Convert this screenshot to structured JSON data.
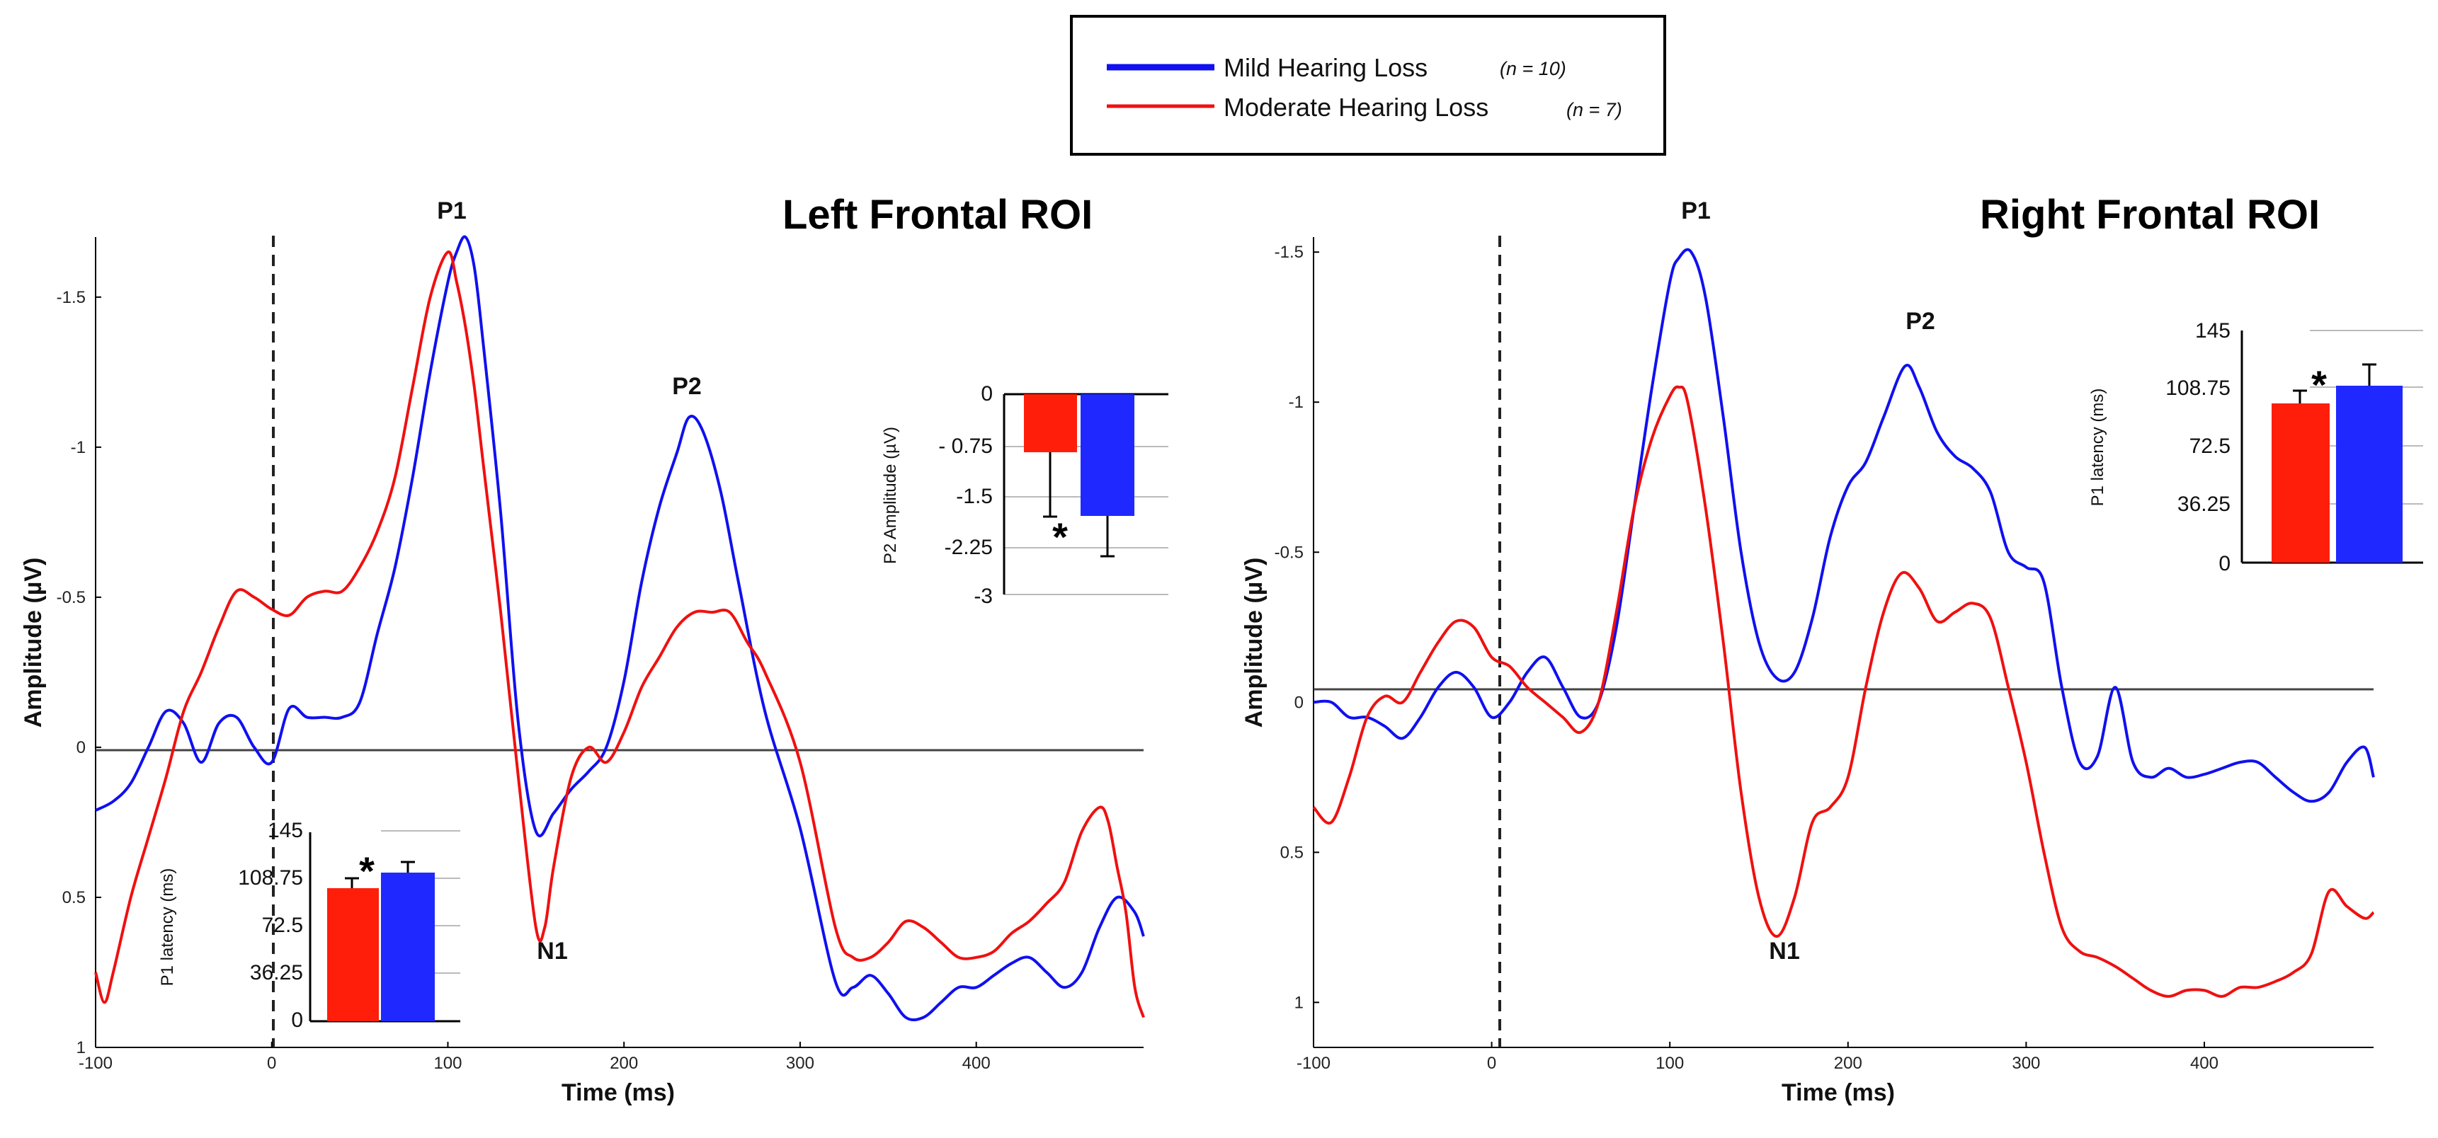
{
  "legend": {
    "entries": [
      {
        "label": "Mild Hearing Loss",
        "n": "(n = 10)",
        "color": "#1010f0"
      },
      {
        "label": "Moderate Hearing Loss",
        "n": "(n = 7)",
        "color": "#f01010"
      }
    ]
  },
  "chart_data": [
    {
      "type": "line",
      "title": "Left Frontal ROI",
      "xlabel": "Time (ms)",
      "ylabel": "Amplitude (µV)",
      "xlim": [
        -100,
        495
      ],
      "ylim": [
        1.0,
        -1.7
      ],
      "y_inverted": true,
      "xticks": [
        -100,
        0,
        100,
        200,
        300,
        400
      ],
      "yticks": [
        -1.5,
        -1,
        -0.5,
        0,
        0.5,
        1
      ],
      "ytick_labels": [
        "-1.5",
        "-1",
        "-0.5",
        "0",
        "0.5",
        "1"
      ],
      "stimulus_onset_ms": 0,
      "annotations": [
        {
          "text": "P1",
          "x": 100,
          "y": -1.78
        },
        {
          "text": "P2",
          "x": 233,
          "y": -1.2
        },
        {
          "text": "N1",
          "x": 158,
          "y": 0.68
        }
      ],
      "series": [
        {
          "name": "Mild Hearing Loss",
          "color": "#1010f0",
          "x": [
            -100,
            -90,
            -80,
            -70,
            -60,
            -50,
            -40,
            -30,
            -20,
            -10,
            0,
            10,
            20,
            30,
            40,
            50,
            60,
            70,
            80,
            90,
            100,
            105,
            110,
            115,
            120,
            130,
            140,
            150,
            160,
            170,
            180,
            190,
            200,
            210,
            220,
            230,
            237,
            245,
            255,
            265,
            280,
            300,
            320,
            330,
            340,
            350,
            360,
            370,
            380,
            390,
            400,
            410,
            420,
            430,
            440,
            450,
            460,
            470,
            480,
            490,
            495
          ],
          "y": [
            0.21,
            0.18,
            0.12,
            0.0,
            -0.12,
            -0.08,
            0.05,
            -0.08,
            -0.1,
            0.0,
            0.05,
            -0.13,
            -0.1,
            -0.1,
            -0.1,
            -0.15,
            -0.38,
            -0.6,
            -0.9,
            -1.25,
            -1.55,
            -1.65,
            -1.7,
            -1.6,
            -1.35,
            -0.78,
            -0.08,
            0.28,
            0.22,
            0.14,
            0.08,
            0.0,
            -0.22,
            -0.55,
            -0.8,
            -0.98,
            -1.1,
            -1.05,
            -0.85,
            -0.55,
            -0.12,
            0.27,
            0.78,
            0.8,
            0.76,
            0.82,
            0.9,
            0.9,
            0.85,
            0.8,
            0.8,
            0.76,
            0.72,
            0.7,
            0.75,
            0.8,
            0.75,
            0.6,
            0.5,
            0.55,
            0.63
          ]
        },
        {
          "name": "Moderate Hearing Loss",
          "color": "#f01010",
          "x": [
            -100,
            -95,
            -90,
            -80,
            -70,
            -60,
            -50,
            -40,
            -30,
            -20,
            -10,
            0,
            10,
            20,
            30,
            40,
            50,
            60,
            70,
            80,
            90,
            100,
            105,
            110,
            115,
            120,
            130,
            140,
            150,
            155,
            160,
            170,
            180,
            190,
            200,
            210,
            220,
            230,
            240,
            250,
            260,
            270,
            280,
            300,
            320,
            330,
            340,
            350,
            360,
            370,
            380,
            390,
            400,
            410,
            420,
            430,
            440,
            450,
            460,
            470,
            475,
            480,
            485,
            490,
            495
          ],
          "y": [
            0.75,
            0.85,
            0.75,
            0.5,
            0.3,
            0.1,
            -0.12,
            -0.25,
            -0.4,
            -0.52,
            -0.5,
            -0.46,
            -0.44,
            -0.5,
            -0.52,
            -0.52,
            -0.6,
            -0.72,
            -0.9,
            -1.2,
            -1.5,
            -1.65,
            -1.55,
            -1.4,
            -1.2,
            -0.95,
            -0.45,
            0.1,
            0.6,
            0.6,
            0.4,
            0.1,
            0.0,
            0.05,
            -0.05,
            -0.2,
            -0.3,
            -0.4,
            -0.45,
            -0.45,
            -0.45,
            -0.35,
            -0.25,
            0.05,
            0.6,
            0.7,
            0.7,
            0.65,
            0.58,
            0.6,
            0.65,
            0.7,
            0.7,
            0.68,
            0.62,
            0.58,
            0.52,
            0.45,
            0.28,
            0.2,
            0.25,
            0.4,
            0.55,
            0.8,
            0.9
          ]
        }
      ],
      "insets": [
        {
          "type": "bar",
          "ylabel": "P1 latency (ms)",
          "ytick_labels": [
            "145",
            "108.75",
            "72.5",
            "36.25",
            "0"
          ],
          "ylim": [
            0,
            145
          ],
          "bars": [
            {
              "series": "Moderate Hearing Loss",
              "value": 97,
              "error": 8
            },
            {
              "series": "Mild Hearing Loss",
              "value": 109,
              "error": 8
            }
          ],
          "significance": "*"
        },
        {
          "type": "bar",
          "ylabel": "P2 Amplitude (µV)",
          "ytick_labels": [
            "0",
            "- 0.75",
            "-1.5",
            "-2.25",
            "-3"
          ],
          "ylim": [
            0,
            -3
          ],
          "bars": [
            {
              "series": "Moderate Hearing Loss",
              "value": -0.85,
              "error": 0.95
            },
            {
              "series": "Mild Hearing Loss",
              "value": -1.85,
              "error": 0.6
            }
          ],
          "significance": "*"
        }
      ]
    },
    {
      "type": "line",
      "title": "Right Frontal ROI",
      "xlabel": "Time (ms)",
      "ylabel": "Amplitude (µV)",
      "xlim": [
        -100,
        495
      ],
      "ylim": [
        1.15,
        -1.55
      ],
      "y_inverted": true,
      "xticks": [
        -100,
        0,
        100,
        200,
        300,
        400
      ],
      "yticks": [
        -1.5,
        -1,
        -0.5,
        0,
        0.5,
        1
      ],
      "ytick_labels": [
        "-1.5",
        "-1",
        "-0.5",
        "0",
        "0.5",
        "1"
      ],
      "stimulus_onset_ms": 0,
      "annotations": [
        {
          "text": "P1",
          "x": 112,
          "y": -1.6
        },
        {
          "text": "P2",
          "x": 230,
          "y": -1.17
        },
        {
          "text": "N1",
          "x": 160,
          "y": 0.88
        }
      ],
      "series": [
        {
          "name": "Mild Hearing Loss",
          "color": "#1010f0",
          "x": [
            -100,
            -90,
            -80,
            -70,
            -60,
            -50,
            -40,
            -30,
            -20,
            -10,
            0,
            10,
            20,
            30,
            40,
            50,
            60,
            70,
            80,
            90,
            100,
            105,
            112,
            120,
            130,
            140,
            150,
            160,
            170,
            180,
            190,
            200,
            210,
            220,
            232,
            240,
            250,
            260,
            270,
            280,
            290,
            300,
            310,
            320,
            330,
            340,
            350,
            360,
            370,
            380,
            390,
            400,
            410,
            420,
            430,
            440,
            450,
            460,
            470,
            480,
            490,
            495
          ],
          "y": [
            0.0,
            0.0,
            0.05,
            0.05,
            0.08,
            0.12,
            0.05,
            -0.05,
            -0.1,
            -0.05,
            0.05,
            0.0,
            -0.1,
            -0.15,
            -0.05,
            0.05,
            0.0,
            -0.25,
            -0.65,
            -1.05,
            -1.4,
            -1.48,
            -1.5,
            -1.35,
            -0.95,
            -0.5,
            -0.2,
            -0.08,
            -0.1,
            -0.28,
            -0.55,
            -0.72,
            -0.8,
            -0.95,
            -1.12,
            -1.05,
            -0.9,
            -0.82,
            -0.78,
            -0.7,
            -0.5,
            -0.45,
            -0.4,
            -0.05,
            0.2,
            0.18,
            -0.05,
            0.2,
            0.25,
            0.22,
            0.25,
            0.24,
            0.22,
            0.2,
            0.2,
            0.25,
            0.3,
            0.33,
            0.3,
            0.2,
            0.15,
            0.25
          ]
        },
        {
          "name": "Moderate Hearing Loss",
          "color": "#f01010",
          "x": [
            -100,
            -90,
            -80,
            -70,
            -60,
            -50,
            -40,
            -30,
            -20,
            -10,
            0,
            10,
            20,
            30,
            40,
            50,
            60,
            70,
            80,
            90,
            100,
            105,
            110,
            120,
            130,
            140,
            150,
            160,
            170,
            180,
            190,
            200,
            210,
            220,
            230,
            240,
            250,
            260,
            270,
            280,
            290,
            300,
            310,
            320,
            330,
            340,
            350,
            360,
            370,
            380,
            390,
            400,
            410,
            420,
            430,
            440,
            450,
            460,
            470,
            480,
            490,
            495
          ],
          "y": [
            0.35,
            0.4,
            0.25,
            0.05,
            -0.02,
            0.0,
            -0.1,
            -0.2,
            -0.27,
            -0.25,
            -0.15,
            -0.12,
            -0.05,
            0.0,
            0.05,
            0.1,
            0.0,
            -0.3,
            -0.65,
            -0.88,
            -1.02,
            -1.05,
            -1.0,
            -0.65,
            -0.2,
            0.3,
            0.65,
            0.78,
            0.65,
            0.4,
            0.35,
            0.25,
            -0.05,
            -0.3,
            -0.43,
            -0.38,
            -0.27,
            -0.3,
            -0.33,
            -0.28,
            -0.05,
            0.2,
            0.5,
            0.75,
            0.83,
            0.85,
            0.88,
            0.92,
            0.96,
            0.98,
            0.96,
            0.96,
            0.98,
            0.95,
            0.95,
            0.93,
            0.9,
            0.84,
            0.63,
            0.68,
            0.72,
            0.7
          ]
        }
      ],
      "insets": [
        {
          "type": "bar",
          "ylabel": "P1 latency (ms)",
          "ytick_labels": [
            "145",
            "108.75",
            "72.5",
            "36.25",
            "0"
          ],
          "ylim": [
            0,
            145
          ],
          "bars": [
            {
              "series": "Moderate Hearing Loss",
              "value": 97,
              "error": 8
            },
            {
              "series": "Mild Hearing Loss",
              "value": 108,
              "error": 12
            }
          ],
          "significance": "*"
        }
      ]
    }
  ]
}
